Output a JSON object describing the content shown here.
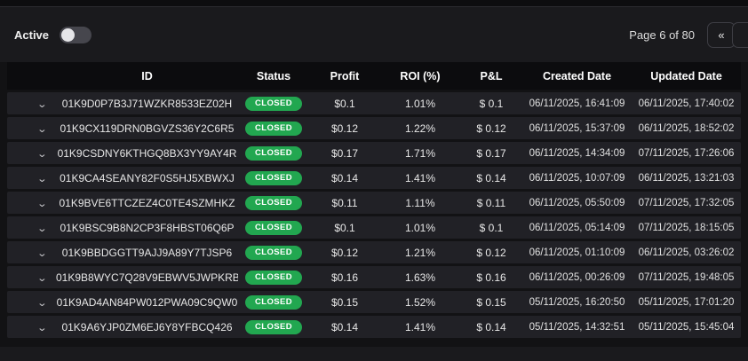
{
  "toolbar": {
    "active_label": "Active",
    "toggle_state": "off",
    "pagination_label": "Page 6 of 80",
    "first_page_button": "«"
  },
  "table": {
    "columns": [
      "ID",
      "Status",
      "Profit",
      "ROI (%)",
      "P&L",
      "Created Date",
      "Updated Date"
    ],
    "rows": [
      {
        "id": "01K9D0P7B3J71WZKR8533EZ02H",
        "status": "CLOSED",
        "profit": "$0.1",
        "roi": "1.01%",
        "pnl": "$ 0.1",
        "created": "06/11/2025, 16:41:09",
        "updated": "06/11/2025, 17:40:02"
      },
      {
        "id": "01K9CX119DRN0BGVZS36Y2C6R5",
        "status": "CLOSED",
        "profit": "$0.12",
        "roi": "1.22%",
        "pnl": "$ 0.12",
        "created": "06/11/2025, 15:37:09",
        "updated": "06/11/2025, 18:52:02"
      },
      {
        "id": "01K9CSDNY6KTHGQ8BX3YY9AY4R",
        "status": "CLOSED",
        "profit": "$0.17",
        "roi": "1.71%",
        "pnl": "$ 0.17",
        "created": "06/11/2025, 14:34:09",
        "updated": "07/11/2025, 17:26:06"
      },
      {
        "id": "01K9CA4SEANY82F0S5HJ5XBWXJ",
        "status": "CLOSED",
        "profit": "$0.14",
        "roi": "1.41%",
        "pnl": "$ 0.14",
        "created": "06/11/2025, 10:07:09",
        "updated": "06/11/2025, 13:21:03"
      },
      {
        "id": "01K9BVE6TTCZEZ4C0TE4SZMHKZ",
        "status": "CLOSED",
        "profit": "$0.11",
        "roi": "1.11%",
        "pnl": "$ 0.11",
        "created": "06/11/2025, 05:50:09",
        "updated": "07/11/2025, 17:32:05"
      },
      {
        "id": "01K9BSC9B8N2CP3F8HBST06Q6P",
        "status": "CLOSED",
        "profit": "$0.1",
        "roi": "1.01%",
        "pnl": "$ 0.1",
        "created": "06/11/2025, 05:14:09",
        "updated": "07/11/2025, 18:15:05"
      },
      {
        "id": "01K9BBDGGTT9AJJ9A89Y7TJSP6",
        "status": "CLOSED",
        "profit": "$0.12",
        "roi": "1.21%",
        "pnl": "$ 0.12",
        "created": "06/11/2025, 01:10:09",
        "updated": "06/11/2025, 03:26:02"
      },
      {
        "id": "01K9B8WYC7Q28V9EBWV5JWPKRB",
        "status": "CLOSED",
        "profit": "$0.16",
        "roi": "1.63%",
        "pnl": "$ 0.16",
        "created": "06/11/2025, 00:26:09",
        "updated": "07/11/2025, 19:48:05"
      },
      {
        "id": "01K9AD4AN84PW012PWA09C9QW0",
        "status": "CLOSED",
        "profit": "$0.15",
        "roi": "1.52%",
        "pnl": "$ 0.15",
        "created": "05/11/2025, 16:20:50",
        "updated": "05/11/2025, 17:01:20"
      },
      {
        "id": "01K9A6YJP0ZM6EJ6Y8YFBCQ426",
        "status": "CLOSED",
        "profit": "$0.14",
        "roi": "1.41%",
        "pnl": "$ 0.14",
        "created": "05/11/2025, 14:32:51",
        "updated": "05/11/2025, 15:45:04"
      }
    ]
  },
  "colors": {
    "page_background": "#1a1a1d",
    "table_background": "#121214",
    "header_background": "#0c0c0e",
    "row_background": "#212126",
    "badge_green": "#22a750"
  },
  "icons": {
    "chevron_down": "⌄",
    "first_page": "«"
  }
}
